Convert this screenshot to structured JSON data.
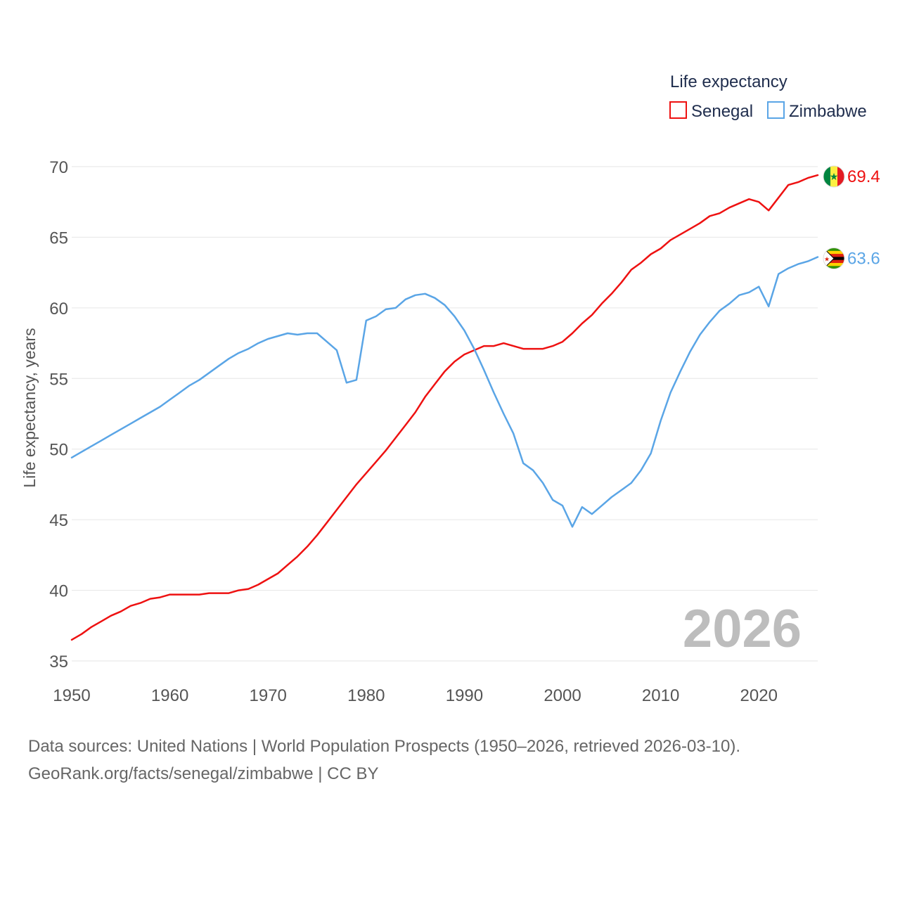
{
  "chart_data": {
    "type": "line",
    "title": "Life expectancy",
    "xlabel": "",
    "ylabel": "Life expectancy, years",
    "xlim": [
      1950,
      2026
    ],
    "ylim": [
      35,
      70
    ],
    "x_ticks": [
      "1950",
      "1960",
      "1970",
      "1980",
      "1990",
      "2000",
      "2010",
      "2020"
    ],
    "y_ticks": [
      "35",
      "40",
      "45",
      "50",
      "55",
      "60",
      "65",
      "70"
    ],
    "year_label": "2026",
    "legend_position": "top-right",
    "grid": true,
    "series": [
      {
        "name": "Senegal",
        "color": "#ee1111",
        "end_label": "69.4",
        "flag_icon": "senegal-flag-icon",
        "flag_colors": [
          "#00853f",
          "#fdef42",
          "#e31b23"
        ],
        "x": [
          1950,
          1951,
          1952,
          1953,
          1954,
          1955,
          1956,
          1957,
          1958,
          1959,
          1960,
          1961,
          1962,
          1963,
          1964,
          1965,
          1966,
          1967,
          1968,
          1969,
          1970,
          1971,
          1972,
          1973,
          1974,
          1975,
          1976,
          1977,
          1978,
          1979,
          1980,
          1981,
          1982,
          1983,
          1984,
          1985,
          1986,
          1987,
          1988,
          1989,
          1990,
          1991,
          1992,
          1993,
          1994,
          1995,
          1996,
          1997,
          1998,
          1999,
          2000,
          2001,
          2002,
          2003,
          2004,
          2005,
          2006,
          2007,
          2008,
          2009,
          2010,
          2011,
          2012,
          2013,
          2014,
          2015,
          2016,
          2017,
          2018,
          2019,
          2020,
          2021,
          2022,
          2023,
          2024,
          2025,
          2026
        ],
        "values": [
          36.5,
          36.9,
          37.4,
          37.8,
          38.2,
          38.5,
          38.9,
          39.1,
          39.4,
          39.5,
          39.7,
          39.7,
          39.7,
          39.7,
          39.8,
          39.8,
          39.8,
          40.0,
          40.1,
          40.4,
          40.8,
          41.2,
          41.8,
          42.4,
          43.1,
          43.9,
          44.8,
          45.7,
          46.6,
          47.5,
          48.3,
          49.1,
          49.9,
          50.8,
          51.7,
          52.6,
          53.7,
          54.6,
          55.5,
          56.2,
          56.7,
          57.0,
          57.3,
          57.3,
          57.5,
          57.3,
          57.1,
          57.1,
          57.1,
          57.3,
          57.6,
          58.2,
          58.9,
          59.5,
          60.3,
          61.0,
          61.8,
          62.7,
          63.2,
          63.8,
          64.2,
          64.8,
          65.2,
          65.6,
          66.0,
          66.5,
          66.7,
          67.1,
          67.4,
          67.7,
          67.5,
          66.9,
          67.8,
          68.7,
          68.9,
          69.2,
          69.4
        ]
      },
      {
        "name": "Zimbabwe",
        "color": "#5aa5e6",
        "end_label": "63.6",
        "flag_icon": "zimbabwe-flag-icon",
        "flag_colors": [
          "#319208",
          "#ffd200",
          "#de2010",
          "#000000",
          "#ffffff"
        ],
        "x": [
          1950,
          1951,
          1952,
          1953,
          1954,
          1955,
          1956,
          1957,
          1958,
          1959,
          1960,
          1961,
          1962,
          1963,
          1964,
          1965,
          1966,
          1967,
          1968,
          1969,
          1970,
          1971,
          1972,
          1973,
          1974,
          1975,
          1976,
          1977,
          1978,
          1979,
          1980,
          1981,
          1982,
          1983,
          1984,
          1985,
          1986,
          1987,
          1988,
          1989,
          1990,
          1991,
          1992,
          1993,
          1994,
          1995,
          1996,
          1997,
          1998,
          1999,
          2000,
          2001,
          2002,
          2003,
          2004,
          2005,
          2006,
          2007,
          2008,
          2009,
          2010,
          2011,
          2012,
          2013,
          2014,
          2015,
          2016,
          2017,
          2018,
          2019,
          2020,
          2021,
          2022,
          2023,
          2024,
          2025,
          2026
        ],
        "values": [
          49.4,
          49.8,
          50.2,
          50.6,
          51.0,
          51.4,
          51.8,
          52.2,
          52.6,
          53.0,
          53.5,
          54.0,
          54.5,
          54.9,
          55.4,
          55.9,
          56.4,
          56.8,
          57.1,
          57.5,
          57.8,
          58.0,
          58.2,
          58.1,
          58.2,
          58.2,
          57.6,
          57.0,
          54.7,
          54.9,
          59.1,
          59.4,
          59.9,
          60.0,
          60.6,
          60.9,
          61.0,
          60.7,
          60.2,
          59.4,
          58.4,
          57.1,
          55.6,
          54.0,
          52.5,
          51.1,
          49.0,
          48.5,
          47.6,
          46.4,
          46.0,
          44.5,
          45.9,
          45.4,
          46.0,
          46.6,
          47.1,
          47.6,
          48.5,
          49.7,
          52.0,
          54.0,
          55.5,
          56.9,
          58.1,
          59.0,
          59.8,
          60.3,
          60.9,
          61.1,
          61.5,
          60.1,
          62.4,
          62.8,
          63.1,
          63.3,
          63.6
        ]
      }
    ]
  },
  "footer": {
    "source_line": "Data sources: United Nations | World Population Prospects (1950–2026, retrieved 2026-03-10).",
    "credit_line": "GeoRank.org/facts/senegal/zimbabwe | CC BY"
  }
}
